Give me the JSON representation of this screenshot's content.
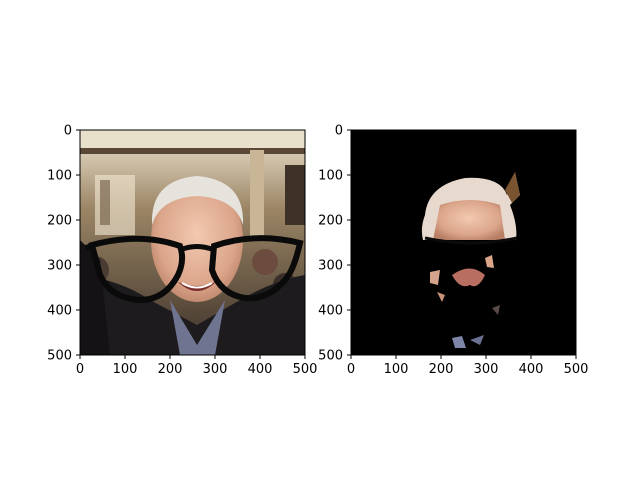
{
  "figure": {
    "panels": [
      {
        "name": "left",
        "image_description_icon": "face-with-sunglasses-photo",
        "x_ticks": [
          "0",
          "100",
          "200",
          "300",
          "400",
          "500"
        ],
        "y_ticks": [
          "0",
          "100",
          "200",
          "300",
          "400",
          "500"
        ],
        "x_range": [
          0,
          500
        ],
        "y_range": [
          0,
          500
        ]
      },
      {
        "name": "right",
        "image_description_icon": "segmented-face-mask",
        "x_ticks": [
          "0",
          "100",
          "200",
          "300",
          "400",
          "500"
        ],
        "y_ticks": [
          "0",
          "100",
          "200",
          "300",
          "400",
          "500"
        ],
        "x_range": [
          0,
          500
        ],
        "y_range": [
          0,
          500
        ]
      }
    ]
  },
  "colors": {
    "background": "#ffffff",
    "mask_bg": "#000000",
    "room_wall": "#8c7a5e",
    "skin": "#e8b9a0",
    "hair": "#e6e2dc",
    "sweater": "#1d1b1e",
    "glasses": "#0a0a0a"
  }
}
